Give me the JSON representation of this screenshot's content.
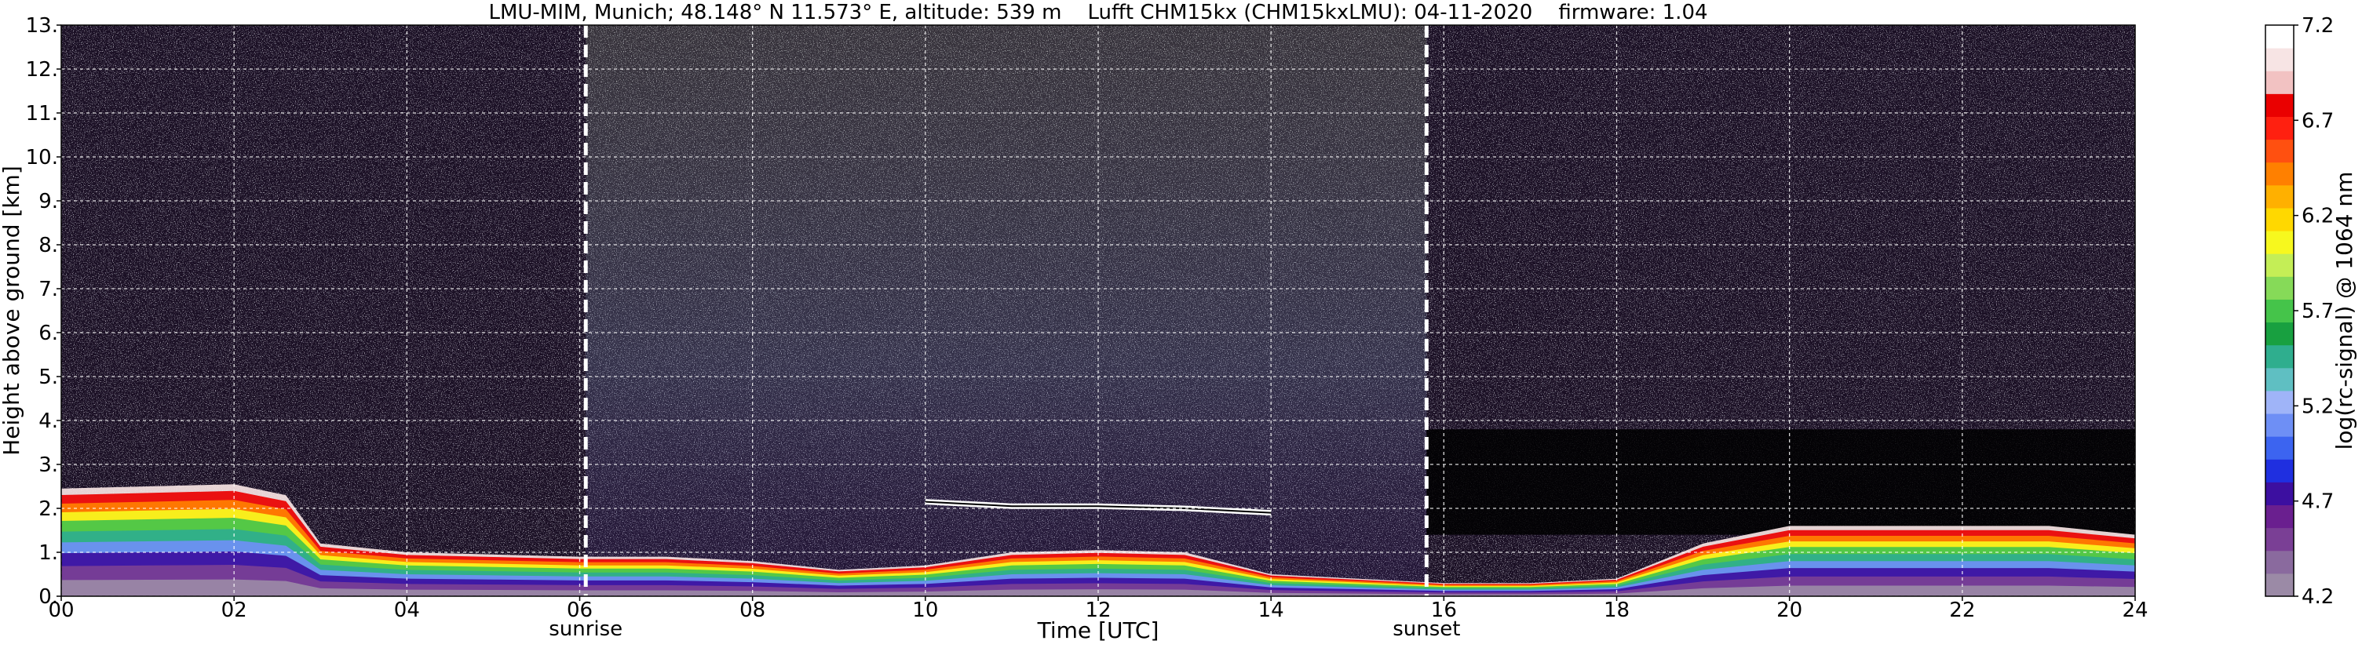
{
  "chart_data": {
    "type": "heatmap",
    "title": "LMU-MIM, Munich; 48.148° N 11.573° E, altitude: 539 m    Lufft CHM15kx (CHM15kxLMU): 04-11-2020    firmware: 1.04",
    "xlabel": "Time [UTC]",
    "ylabel": "Height above ground [km]",
    "xlim": [
      0,
      24
    ],
    "ylim": [
      0,
      13
    ],
    "x_ticks": [
      0,
      2,
      4,
      6,
      8,
      10,
      12,
      14,
      16,
      18,
      20,
      22,
      24
    ],
    "x_tick_labels": [
      "00",
      "02",
      "04",
      "06",
      "08",
      "10",
      "12",
      "14",
      "16",
      "18",
      "20",
      "22",
      "24"
    ],
    "y_ticks": [
      0,
      1,
      2,
      3,
      4,
      5,
      6,
      7,
      8,
      9,
      10,
      11,
      12,
      13
    ],
    "y_tick_labels": [
      "0.",
      "1.",
      "2.",
      "3.",
      "4.",
      "5.",
      "6.",
      "7.",
      "8.",
      "9.",
      "10.",
      "11.",
      "12.",
      "13."
    ],
    "grid": true,
    "markers": [
      {
        "label": "sunrise",
        "x": 6.07
      },
      {
        "label": "sunset",
        "x": 15.8
      }
    ],
    "colorbar": {
      "label": "log(rc-signal) @ 1064 nm",
      "range": [
        4.2,
        7.2
      ],
      "tick_values": [
        4.2,
        4.7,
        5.2,
        5.7,
        6.2,
        6.7,
        7.2
      ],
      "tick_labels": [
        "4.2",
        "4.7",
        "5.2",
        "5.7",
        "6.2",
        "6.7",
        "7.2"
      ],
      "colors": [
        "#9b8aa6",
        "#8a6a9e",
        "#7a3f95",
        "#6a1f8f",
        "#3c0fa0",
        "#1f2fe0",
        "#3c64f0",
        "#6e8ff5",
        "#9fb4f8",
        "#5fbfc2",
        "#2fae8e",
        "#18a040",
        "#45c44a",
        "#86da58",
        "#c4ee56",
        "#f7f81e",
        "#ffd800",
        "#ffb000",
        "#ff8000",
        "#ff5010",
        "#ff2010",
        "#ea0000",
        "#f2c2c2",
        "#f7e4e4",
        "#ffffff"
      ]
    },
    "profile_layers": [
      {
        "name": "boundary layer top",
        "points": [
          [
            0,
            2.45
          ],
          [
            1,
            2.5
          ],
          [
            2,
            2.55
          ],
          [
            2.6,
            2.3
          ],
          [
            3,
            1.2
          ],
          [
            4,
            1.0
          ],
          [
            5,
            0.95
          ],
          [
            6,
            0.9
          ],
          [
            7,
            0.9
          ],
          [
            8,
            0.8
          ],
          [
            9,
            0.6
          ],
          [
            10,
            0.7
          ],
          [
            11,
            1.0
          ],
          [
            12,
            1.05
          ],
          [
            13,
            1.0
          ],
          [
            14,
            0.5
          ],
          [
            15,
            0.4
          ],
          [
            16,
            0.3
          ],
          [
            17,
            0.3
          ],
          [
            18,
            0.4
          ],
          [
            19,
            1.2
          ],
          [
            20,
            1.6
          ],
          [
            21,
            1.6
          ],
          [
            22,
            1.6
          ],
          [
            23,
            1.6
          ],
          [
            24,
            1.4
          ]
        ]
      },
      {
        "name": "elevated aerosol layer",
        "points": [
          [
            10,
            2.15
          ],
          [
            11,
            2.05
          ],
          [
            12,
            2.05
          ],
          [
            13,
            2.0
          ],
          [
            14,
            1.9
          ]
        ]
      }
    ]
  }
}
